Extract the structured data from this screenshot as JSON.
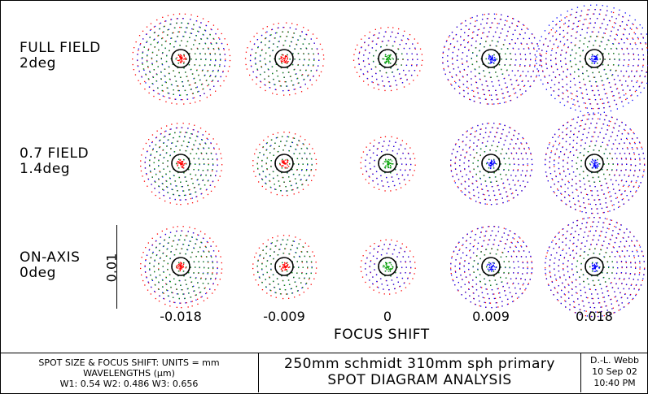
{
  "rows": [
    {
      "label": "FULL FIELD",
      "sub": "2deg"
    },
    {
      "label": "0.7 FIELD",
      "sub": "1.4deg"
    },
    {
      "label": "ON-AXIS",
      "sub": "0deg"
    }
  ],
  "focus_ticks": [
    "-0.018",
    "-0.009",
    "0",
    "0.009",
    "0.018"
  ],
  "axis_title": "FOCUS SHIFT",
  "scale_label": "0.01",
  "title_block": {
    "left_line1": "SPOT SIZE & FOCUS SHIFT: UNITS = mm",
    "left_line2": "WAVELENGTHS (μm)",
    "left_line3": "W1: 0.54 W2: 0.486 W3: 0.656",
    "mid_line1": "250mm schmidt 310mm sph primary",
    "mid_line2": "SPOT DIAGRAM ANALYSIS",
    "author": "D.-L. Webb",
    "date": "10 Sep 02",
    "time": "10:40 PM"
  },
  "colors": {
    "w1": "#00a000",
    "w2": "#0000ff",
    "w3": "#ff0000",
    "ink": "#000000"
  }
}
